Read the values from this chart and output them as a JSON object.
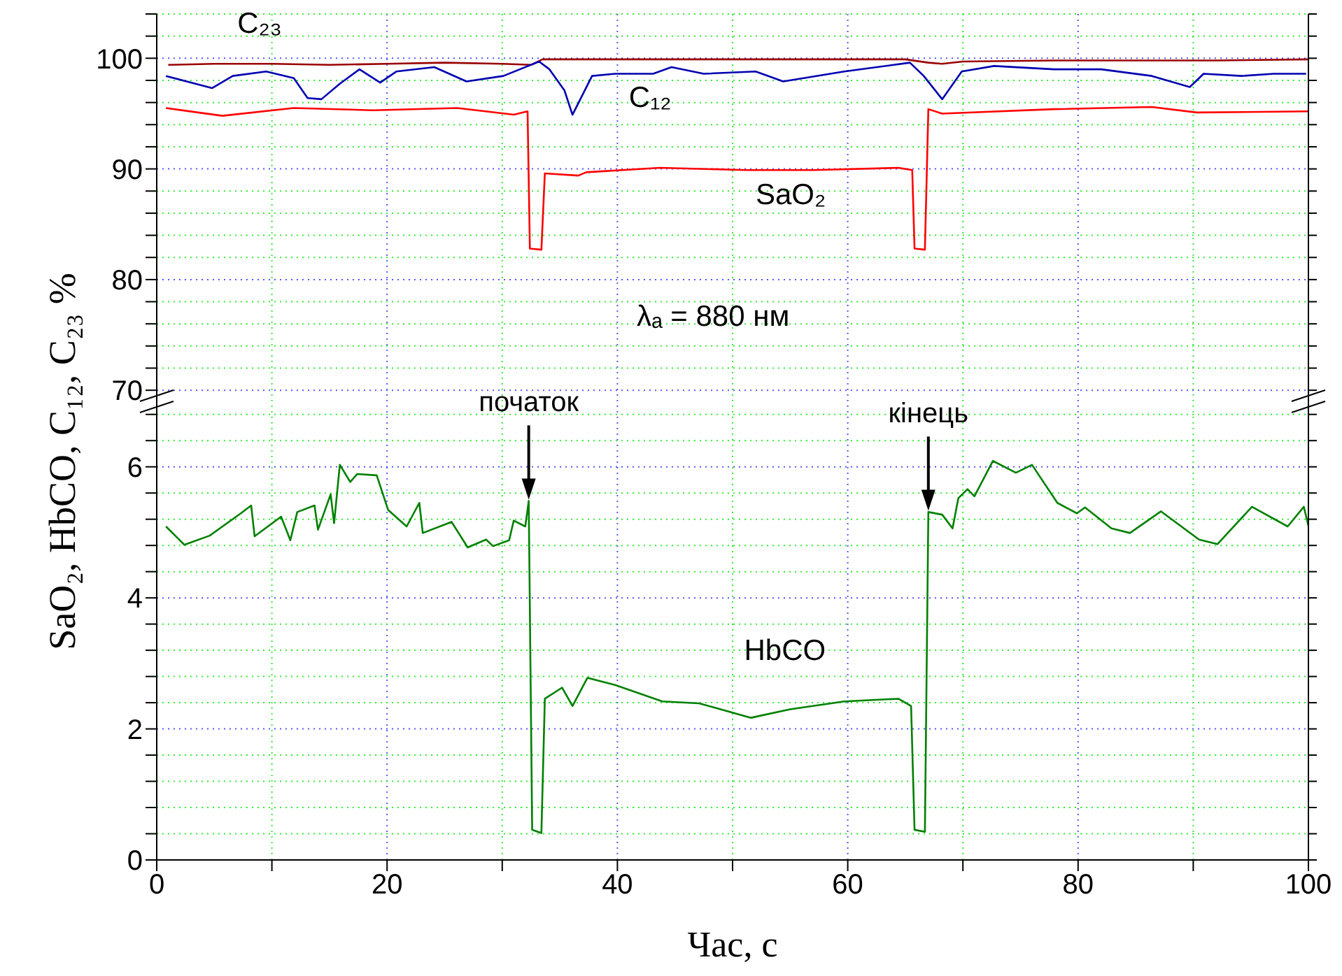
{
  "chart_data": [
    {
      "type": "line",
      "ylabel": "SaO₂, HbCO, C₁₂, C₂₃ %",
      "xlim": [
        0,
        100
      ],
      "xticks": [
        0,
        {
          "value": 10,
          "label": null
        },
        20,
        {
          "value": 30,
          "label": null
        },
        40,
        {
          "value": 50,
          "label": null
        },
        60,
        {
          "value": 70,
          "label": null
        },
        80,
        {
          "value": 90,
          "label": null
        },
        100
      ],
      "ylim": [
        69,
        104
      ],
      "yticks": [
        70,
        {
          "value": 72,
          "label": null
        },
        {
          "value": 74,
          "label": null
        },
        {
          "value": 76,
          "label": null
        },
        {
          "value": 78,
          "label": null
        },
        80,
        {
          "value": 82,
          "label": null
        },
        {
          "value": 84,
          "label": null
        },
        {
          "value": 86,
          "label": null
        },
        {
          "value": 88,
          "label": null
        },
        90,
        {
          "value": 92,
          "label": null
        },
        {
          "value": 94,
          "label": null
        },
        {
          "value": 96,
          "label": null
        },
        {
          "value": 98,
          "label": null
        },
        100,
        {
          "value": 102,
          "label": null
        },
        {
          "value": 104,
          "label": null
        }
      ],
      "grid": true,
      "tick_labels": "y",
      "annotations": [
        "λₐ = 880 нм"
      ],
      "series": [
        {
          "name": "C₂₃",
          "color": "#990000",
          "x": [
            1,
            5,
            10,
            15,
            20,
            25,
            30,
            32.5,
            33.5,
            40,
            50,
            60,
            65,
            67,
            68.2,
            70,
            78,
            85,
            92,
            100
          ],
          "values": [
            99.4,
            99.5,
            99.5,
            99.4,
            99.5,
            99.6,
            99.5,
            99.4,
            99.9,
            99.9,
            99.9,
            99.9,
            99.9,
            99.6,
            99.5,
            99.7,
            99.8,
            99.8,
            99.8,
            99.9
          ]
        },
        {
          "name": "C₁₂",
          "color": "#0000b0",
          "x": [
            0.8,
            4.8,
            6.6,
            9.5,
            11.9,
            13.1,
            14.3,
            15.9,
            17.6,
            19.4,
            20.8,
            24.1,
            26.9,
            30.1,
            33.2,
            34.1,
            35.4,
            36.1,
            37.8,
            39.8,
            43.1,
            44.7,
            47.5,
            52,
            54.4,
            59.7,
            65.4,
            66.6,
            68.2,
            69.9,
            72.7,
            77.9,
            82,
            86.4,
            89.7,
            90.9,
            94.2,
            97,
            99.8
          ],
          "values": [
            98.4,
            97.3,
            98.4,
            98.8,
            98.2,
            96.4,
            96.3,
            97.7,
            99,
            97.8,
            98.8,
            99.2,
            97.9,
            98.4,
            99.7,
            99,
            97.1,
            94.9,
            98.4,
            98.6,
            98.6,
            99.2,
            98.6,
            98.8,
            97.9,
            98.8,
            99.6,
            98.4,
            96.3,
            98.8,
            99.3,
            99,
            99,
            98.4,
            97.4,
            98.6,
            98.4,
            98.6,
            98.6
          ]
        },
        {
          "name": "SaO₂",
          "color": "#ff0000",
          "x": [
            0.8,
            5.7,
            11.9,
            18.8,
            26.1,
            31,
            32.2,
            32.4,
            33.4,
            33.7,
            36.6,
            37.3,
            43.7,
            51.2,
            57,
            64.4,
            65.6,
            65.8,
            66.7,
            67,
            68.2,
            77.9,
            86.4,
            90.3,
            100
          ],
          "values": [
            95.5,
            94.8,
            95.5,
            95.3,
            95.5,
            94.9,
            95.2,
            82.8,
            82.7,
            89.6,
            89.4,
            89.7,
            90.1,
            89.9,
            89.9,
            90.1,
            89.9,
            82.8,
            82.7,
            95.4,
            95,
            95.4,
            95.6,
            95.1,
            95.2
          ]
        }
      ]
    },
    {
      "type": "line",
      "xlabel": "Час, с",
      "xlim": [
        0,
        100
      ],
      "xticks": [
        0,
        {
          "value": 10,
          "label": null
        },
        20,
        {
          "value": 30,
          "label": null
        },
        40,
        {
          "value": 50,
          "label": null
        },
        60,
        {
          "value": 70,
          "label": null
        },
        80,
        {
          "value": 90,
          "label": null
        },
        100
      ],
      "ylim": [
        0,
        7
      ],
      "yticks": [
        0,
        {
          "value": 0.4,
          "label": null
        },
        {
          "value": 0.8,
          "label": null
        },
        {
          "value": 1.2,
          "label": null
        },
        {
          "value": 1.6,
          "label": null
        },
        2,
        {
          "value": 2.4,
          "label": null
        },
        {
          "value": 2.8,
          "label": null
        },
        {
          "value": 3.2,
          "label": null
        },
        {
          "value": 3.6,
          "label": null
        },
        4,
        {
          "value": 4.4,
          "label": null
        },
        {
          "value": 4.8,
          "label": null
        },
        {
          "value": 5.2,
          "label": null
        },
        {
          "value": 5.6,
          "label": null
        },
        6,
        {
          "value": 6.4,
          "label": null
        },
        {
          "value": 6.8,
          "label": null
        }
      ],
      "grid": true,
      "annotations": [
        {
          "text": "початок",
          "x": 32.3,
          "y": 5.48
        },
        {
          "text": "кінець",
          "x": 67,
          "y": 5.31
        }
      ],
      "series": [
        {
          "name": "HbCO",
          "color": "#008000",
          "x": [
            0.8,
            2.4,
            4.6,
            7.3,
            8.2,
            8.5,
            10.8,
            11.6,
            12.2,
            13.7,
            14,
            15.1,
            15.4,
            15.9,
            16.8,
            17.4,
            19.1,
            20.1,
            21.7,
            22.8,
            23.1,
            25.6,
            27,
            28.6,
            29.2,
            30.6,
            31,
            32,
            32.3,
            32.6,
            33.4,
            33.7,
            35.2,
            36.1,
            37.4,
            39.8,
            43.9,
            47.1,
            51.6,
            55,
            59.7,
            64.4,
            65.5,
            65.8,
            66.7,
            67,
            68.2,
            69.1,
            69.6,
            70.4,
            71,
            72.6,
            74.6,
            76,
            78.2,
            79.9,
            80.6,
            82.9,
            84.5,
            87.2,
            90.5,
            92.1,
            95.1,
            98.2,
            99.6,
            100
          ],
          "values": [
            5.09,
            4.81,
            4.95,
            5.29,
            5.41,
            4.94,
            5.24,
            4.88,
            5.31,
            5.41,
            5.04,
            5.58,
            5.14,
            6.03,
            5.77,
            5.89,
            5.87,
            5.34,
            5.09,
            5.45,
            4.99,
            5.16,
            4.77,
            4.89,
            4.79,
            4.88,
            5.18,
            5.09,
            5.48,
            0.46,
            0.41,
            2.46,
            2.63,
            2.35,
            2.78,
            2.67,
            2.42,
            2.39,
            2.17,
            2.3,
            2.42,
            2.46,
            2.35,
            0.46,
            0.43,
            5.31,
            5.27,
            5.06,
            5.52,
            5.66,
            5.55,
            6.09,
            5.91,
            6.03,
            5.45,
            5.29,
            5.38,
            5.06,
            4.99,
            5.32,
            4.89,
            4.82,
            5.39,
            5.09,
            5.39,
            5.1
          ]
        }
      ]
    }
  ]
}
